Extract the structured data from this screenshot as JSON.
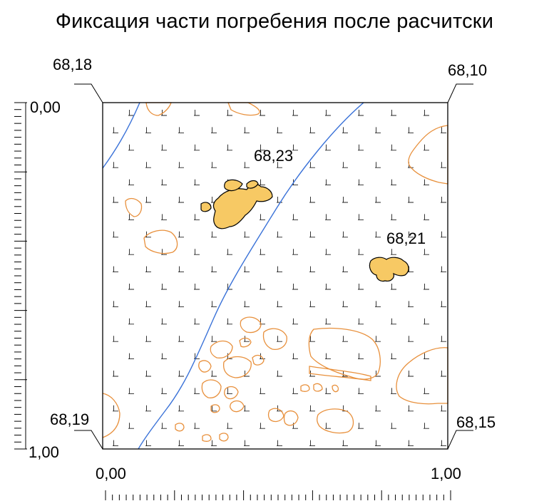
{
  "title": "Фиксация части погребения после расчитски",
  "corner_elevations": {
    "top_left": "68,18",
    "top_right": "68,10",
    "bottom_left": "68,19",
    "bottom_right": "68,15"
  },
  "point_elevations": {
    "upper_find": "68,23",
    "right_find": "68,21"
  },
  "scales": {
    "vertical": {
      "start": "0,00",
      "end": "1,00"
    },
    "horizontal": {
      "start": "0,00",
      "end": "1,00"
    }
  },
  "colors": {
    "outline": "#e8903c",
    "find_fill": "#f7c964",
    "river_line": "#3a72d8",
    "hatch": "#000000"
  }
}
